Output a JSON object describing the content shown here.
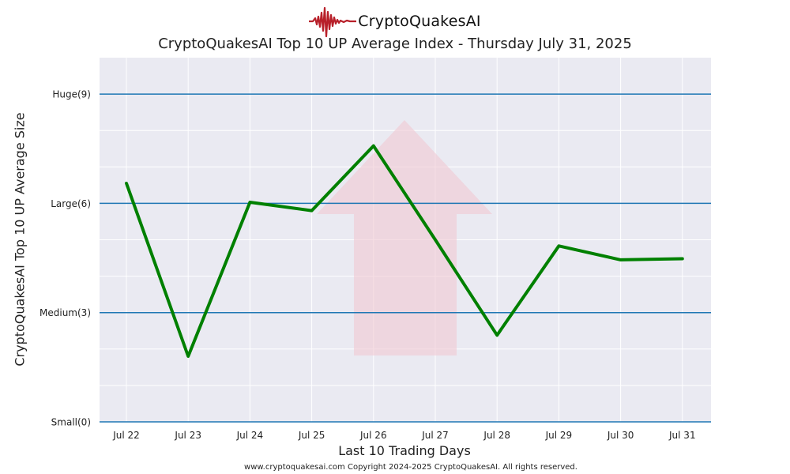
{
  "brand": {
    "name": "CryptoQuakesAI",
    "logo_icon": "seismograph-wave-icon",
    "logo_color": "#b8202a"
  },
  "chart_data": {
    "type": "line",
    "title": "CryptoQuakesAI Top 10 UP Average Index - Thursday July 31, 2025",
    "xlabel": "Last 10 Trading Days",
    "ylabel": "CryptoQuakesAI Top 10 UP Average Size",
    "categories": [
      "Jul 22",
      "Jul 23",
      "Jul 24",
      "Jul 25",
      "Jul 26",
      "Jul 27",
      "Jul 28",
      "Jul 29",
      "Jul 30",
      "Jul 31"
    ],
    "series": [
      {
        "values": [
          6.55,
          1.8,
          6.03,
          5.8,
          7.58,
          5.0,
          2.38,
          4.83,
          4.45,
          4.48
        ],
        "color": "#008000"
      }
    ],
    "ylim": [
      0,
      10
    ],
    "y_ticks": [
      {
        "value": 0,
        "label": "Small(0)"
      },
      {
        "value": 3,
        "label": "Medium(3)"
      },
      {
        "value": 6,
        "label": "Large(6)"
      },
      {
        "value": 9,
        "label": "Huge(9)"
      }
    ],
    "grid": true,
    "background_icon": "up-arrow-icon",
    "colors": {
      "plot_bg": "#eaeaf2",
      "reference_lines": "#1f77b4",
      "arrow": "#f0c8d2"
    }
  },
  "footer": {
    "text": "www.cryptoquakesai.com Copyright 2024-2025 CryptoQuakesAI. All rights reserved."
  }
}
